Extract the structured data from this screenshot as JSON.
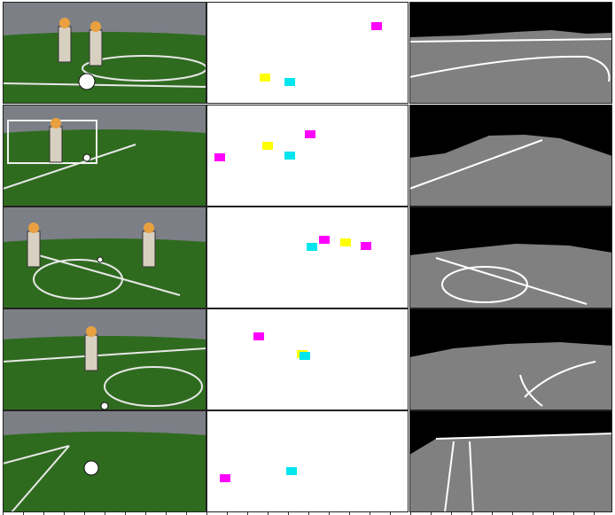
{
  "figure": {
    "layout": "grid",
    "rows": 5,
    "columns": 3,
    "column_contents": [
      "camera-image",
      "object-detection-heatmap",
      "field-segmentation-mask"
    ],
    "row_scenes": [
      {
        "scene": "robots-on-field-with-ball",
        "detections": [
          {
            "color": "magenta"
          },
          {
            "color": "yellow"
          },
          {
            "color": "cyan"
          }
        ]
      },
      {
        "scene": "robot-goalkeeper-in-goal",
        "detections": [
          {
            "color": "magenta"
          },
          {
            "color": "yellow"
          },
          {
            "color": "magenta"
          },
          {
            "color": "cyan"
          }
        ]
      },
      {
        "scene": "field-with-center-circle",
        "detections": [
          {
            "color": "magenta"
          },
          {
            "color": "yellow"
          },
          {
            "color": "cyan"
          },
          {
            "color": "magenta"
          }
        ]
      },
      {
        "scene": "robots-near-center-circle",
        "detections": [
          {
            "color": "magenta"
          },
          {
            "color": "yellow"
          },
          {
            "color": "cyan"
          }
        ]
      },
      {
        "scene": "goal-area-with-ball",
        "detections": [
          {
            "color": "magenta"
          },
          {
            "color": "cyan"
          }
        ]
      }
    ],
    "colors": {
      "ball": "#00e5ee",
      "robot": "#ff00ff",
      "goalpost": "#ffff00",
      "field_mask": "#808080",
      "line_mask": "#ffffff",
      "background_mask": "#000000",
      "grass": "#2f6b1f",
      "heatmap_bg": "#ffffff"
    }
  }
}
